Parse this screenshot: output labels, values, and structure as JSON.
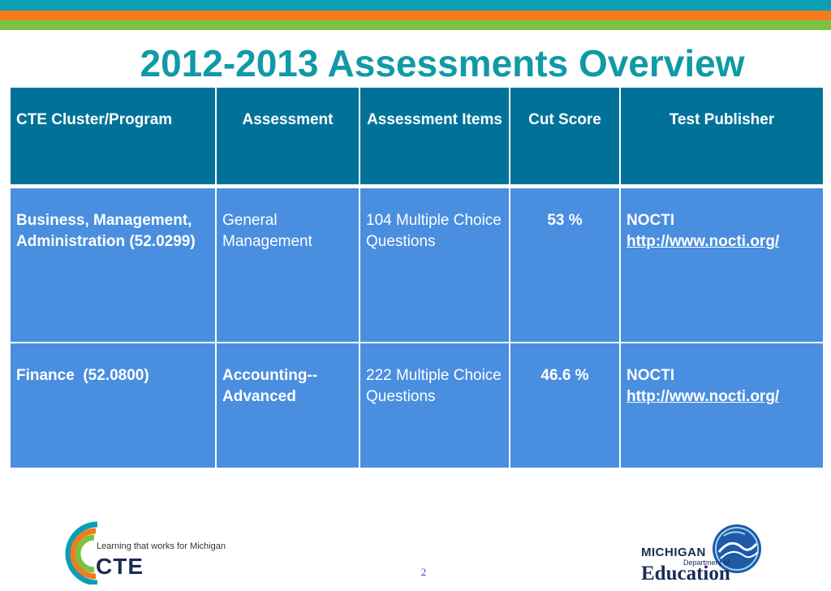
{
  "title": "2012-2013 Assessments Overview",
  "table": {
    "headers": [
      "CTE Cluster/Program",
      "Assessment",
      "Assessment Items",
      "Cut Score",
      "Test Publisher"
    ],
    "rows": [
      {
        "cluster": "Business, Management, Administration (52.0299)",
        "assessment": "General Management",
        "items": "104 Multiple Choice Questions",
        "cut_score": "53 %",
        "publisher_name": "NOCTI",
        "publisher_url": "http://www.nocti.org/"
      },
      {
        "cluster": "Finance  (52.0800)",
        "assessment": "Accounting--Advanced",
        "items": "222 Multiple Choice Questions",
        "cut_score": "46.6 %",
        "publisher_name": "NOCTI",
        "publisher_url": "http://www.nocti.org/"
      }
    ]
  },
  "footer": {
    "cte_tagline": "Learning that works for Michigan",
    "cte_word": "CTE",
    "page_number": "2",
    "mde_michigan": "MICHIGAN",
    "mde_dept": "Department of",
    "mde_education": "Education"
  },
  "colors": {
    "header_bg": "#00729a",
    "body_bg": "#4a8ee0",
    "title": "#0f9aa6"
  }
}
